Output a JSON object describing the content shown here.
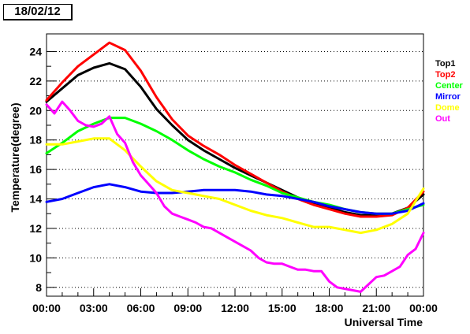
{
  "title": "18/02/12",
  "chart_data": {
    "type": "line",
    "xlabel": "Universal Time",
    "ylabel": "Temperature(degree)",
    "xlim": [
      0,
      24
    ],
    "ylim": [
      7.4,
      25.2
    ],
    "x_ticks": [
      {
        "value": 0,
        "label": "00:00"
      },
      {
        "value": 3,
        "label": "03:00"
      },
      {
        "value": 6,
        "label": "06:00"
      },
      {
        "value": 9,
        "label": "09:00"
      },
      {
        "value": 12,
        "label": "12:00"
      },
      {
        "value": 15,
        "label": "15:00"
      },
      {
        "value": 18,
        "label": "18:00"
      },
      {
        "value": 21,
        "label": "21:00"
      },
      {
        "value": 24,
        "label": "00:00"
      }
    ],
    "y_ticks": [
      {
        "value": 8,
        "label": "8"
      },
      {
        "value": 10,
        "label": "10"
      },
      {
        "value": 12,
        "label": "12"
      },
      {
        "value": 14,
        "label": "14"
      },
      {
        "value": 16,
        "label": "16"
      },
      {
        "value": 18,
        "label": "18"
      },
      {
        "value": 20,
        "label": "20"
      },
      {
        "value": 22,
        "label": "22"
      },
      {
        "value": 24,
        "label": "24"
      }
    ],
    "grid": "horizontal-dotted",
    "legend_position": "right",
    "series": [
      {
        "name": "Top1",
        "color": "#000000",
        "x": [
          0,
          1,
          2,
          3,
          4,
          5,
          6,
          7,
          8,
          9,
          10,
          11,
          12,
          13,
          14,
          15,
          16,
          17,
          18,
          19,
          20,
          21,
          22,
          23,
          24
        ],
        "y": [
          20.6,
          21.5,
          22.4,
          22.9,
          23.2,
          22.8,
          21.6,
          20.1,
          19.0,
          18.0,
          17.3,
          16.7,
          16.1,
          15.6,
          15.1,
          14.6,
          14.1,
          13.7,
          13.4,
          13.1,
          12.9,
          12.9,
          13.0,
          13.4,
          14.3
        ]
      },
      {
        "name": "Top2",
        "color": "#ff0000",
        "x": [
          0,
          1,
          2,
          3,
          4,
          5,
          6,
          7,
          8,
          9,
          10,
          11,
          12,
          13,
          14,
          15,
          16,
          17,
          18,
          19,
          20,
          21,
          22,
          23,
          24
        ],
        "y": [
          20.7,
          21.9,
          23.0,
          23.8,
          24.6,
          24.1,
          22.7,
          20.9,
          19.4,
          18.3,
          17.6,
          17.0,
          16.3,
          15.7,
          15.1,
          14.5,
          14.0,
          13.6,
          13.3,
          13.0,
          12.8,
          12.8,
          12.9,
          13.4,
          14.5
        ]
      },
      {
        "name": "Center",
        "color": "#00ff00",
        "x": [
          0,
          1,
          2,
          3,
          4,
          5,
          6,
          7,
          8,
          9,
          10,
          11,
          12,
          13,
          14,
          15,
          16,
          17,
          18,
          19,
          20,
          21,
          22,
          23,
          24
        ],
        "y": [
          17.1,
          17.8,
          18.6,
          19.1,
          19.5,
          19.5,
          19.1,
          18.6,
          18.0,
          17.3,
          16.7,
          16.2,
          15.8,
          15.3,
          14.9,
          14.4,
          14.1,
          13.8,
          13.6,
          13.3,
          13.1,
          13.0,
          13.0,
          13.3,
          13.6
        ]
      },
      {
        "name": "Mirror",
        "color": "#0000ff",
        "x": [
          0,
          1,
          2,
          3,
          4,
          5,
          6,
          7,
          8,
          9,
          10,
          11,
          12,
          13,
          14,
          15,
          16,
          17,
          18,
          19,
          20,
          21,
          22,
          23,
          24
        ],
        "y": [
          13.8,
          14.0,
          14.4,
          14.8,
          15.0,
          14.8,
          14.5,
          14.4,
          14.4,
          14.5,
          14.6,
          14.6,
          14.6,
          14.5,
          14.3,
          14.2,
          14.0,
          13.8,
          13.5,
          13.3,
          13.1,
          13.0,
          13.0,
          13.2,
          13.7
        ]
      },
      {
        "name": "Dome",
        "color": "#ffff00",
        "x": [
          0,
          1,
          2,
          3,
          4,
          5,
          6,
          7,
          8,
          9,
          10,
          11,
          12,
          13,
          14,
          15,
          16,
          17,
          18,
          19,
          20,
          21,
          22,
          23,
          24
        ],
        "y": [
          17.7,
          17.7,
          17.9,
          18.1,
          18.1,
          17.3,
          16.2,
          15.2,
          14.6,
          14.4,
          14.2,
          14.0,
          13.6,
          13.2,
          12.9,
          12.7,
          12.4,
          12.1,
          12.1,
          11.9,
          11.7,
          11.9,
          12.3,
          13.0,
          14.7
        ]
      },
      {
        "name": "Out",
        "color": "#ff00ff",
        "x": [
          0,
          0.5,
          1,
          1.5,
          2,
          2.5,
          3,
          3.5,
          4,
          4.5,
          5,
          5.5,
          6,
          6.5,
          7,
          7.5,
          8,
          8.5,
          9,
          9.5,
          10,
          10.5,
          11,
          11.5,
          12,
          12.5,
          13,
          13.5,
          14,
          14.5,
          15,
          15.5,
          16,
          16.5,
          17,
          17.5,
          18,
          18.5,
          19,
          19.5,
          20,
          20.5,
          21,
          21.5,
          22,
          22.5,
          23,
          23.5,
          24
        ],
        "y": [
          20.4,
          19.8,
          20.6,
          20.0,
          19.3,
          19.0,
          18.9,
          19.1,
          19.6,
          18.4,
          17.8,
          16.5,
          15.6,
          15.0,
          14.4,
          13.5,
          13.0,
          12.8,
          12.6,
          12.4,
          12.1,
          12.0,
          11.7,
          11.4,
          11.1,
          10.8,
          10.5,
          10.0,
          9.7,
          9.6,
          9.6,
          9.4,
          9.2,
          9.2,
          9.1,
          9.1,
          8.4,
          8.0,
          7.9,
          7.8,
          7.7,
          8.2,
          8.7,
          8.8,
          9.1,
          9.4,
          10.2,
          10.6,
          11.7
        ]
      }
    ]
  }
}
